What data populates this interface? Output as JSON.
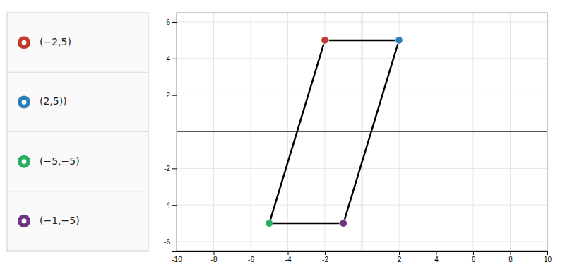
{
  "chart_data": {
    "type": "scatter",
    "xlim": [
      -10,
      10
    ],
    "ylim": [
      -6.5,
      6.5
    ],
    "xticks": [
      -10,
      -8,
      -6,
      -4,
      -2,
      2,
      4,
      6,
      8,
      10
    ],
    "yticks": [
      -6,
      -4,
      -2,
      2,
      4,
      6
    ],
    "grid": true,
    "legend": "left",
    "series": [
      {
        "name": "(−2,5)",
        "color": "#c0392b",
        "marker": "circle",
        "x": [
          -2
        ],
        "values": [
          5
        ]
      },
      {
        "name": "(2,5))",
        "color": "#2980b9",
        "marker": "circle",
        "x": [
          2
        ],
        "values": [
          5
        ]
      },
      {
        "name": "(−5,−5)",
        "color": "#27ae60",
        "marker": "circle",
        "x": [
          -5
        ],
        "values": [
          -5
        ]
      },
      {
        "name": "(−1,−5)",
        "color": "#6c3483",
        "marker": "circle",
        "x": [
          -1
        ],
        "values": [
          -5
        ]
      },
      {
        "type": "line",
        "color": "#000000",
        "x": [
          -2,
          2,
          -1,
          -5,
          -2
        ],
        "values": [
          5,
          5,
          -5,
          -5,
          5
        ]
      }
    ]
  }
}
